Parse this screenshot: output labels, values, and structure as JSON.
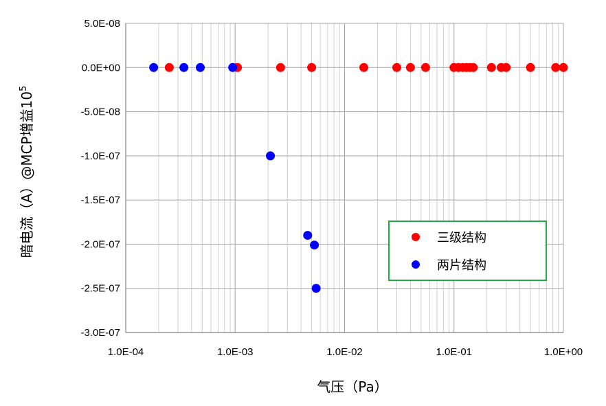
{
  "chart_data": {
    "type": "scatter",
    "xscale": "log",
    "xlim": [
      0.0001,
      1.0
    ],
    "ylim": [
      -3e-07,
      5e-08
    ],
    "xlabel": "气压（Pa）",
    "ylabel": "暗电流（A）@MCP增益10",
    "ylabel_sup": "5",
    "x_ticks": [
      0.0001,
      0.001,
      0.01,
      0.1,
      1.0
    ],
    "x_tick_labels": [
      "1.0E-04",
      "1.0E-03",
      "1.0E-02",
      "1.0E-01",
      "1.0E+00"
    ],
    "y_ticks": [
      5e-08,
      0,
      -5e-08,
      -1e-07,
      -1.5e-07,
      -2e-07,
      -2.5e-07,
      -3e-07
    ],
    "y_tick_labels": [
      "5.0E-08",
      "0.0E+00",
      "-5.0E-08",
      "-1.0E-07",
      "-1.5E-07",
      "-2.0E-07",
      "-2.5E-07",
      "-3.0E-07"
    ],
    "grid": true,
    "legend_position": "bottom-right",
    "series": [
      {
        "name": "三级结构",
        "color": "#ff0000",
        "points": [
          [
            0.00025,
            0
          ],
          [
            0.00105,
            0
          ],
          [
            0.0026,
            0
          ],
          [
            0.005,
            0
          ],
          [
            0.015,
            0
          ],
          [
            0.03,
            0
          ],
          [
            0.04,
            0
          ],
          [
            0.055,
            0
          ],
          [
            0.1,
            0
          ],
          [
            0.11,
            0
          ],
          [
            0.12,
            0
          ],
          [
            0.13,
            0
          ],
          [
            0.14,
            0
          ],
          [
            0.15,
            0
          ],
          [
            0.22,
            0
          ],
          [
            0.27,
            0
          ],
          [
            0.3,
            0
          ],
          [
            0.5,
            0
          ],
          [
            0.85,
            0
          ],
          [
            1.0,
            0
          ]
        ]
      },
      {
        "name": "两片结构",
        "color": "#0000ff",
        "points": [
          [
            0.00018,
            0
          ],
          [
            0.00034,
            0
          ],
          [
            0.00048,
            0
          ],
          [
            0.00095,
            0
          ],
          [
            0.0021,
            -1e-07
          ],
          [
            0.0046,
            -1.9e-07
          ],
          [
            0.0053,
            -2.01e-07
          ],
          [
            0.0055,
            -2.5e-07
          ]
        ]
      }
    ]
  }
}
